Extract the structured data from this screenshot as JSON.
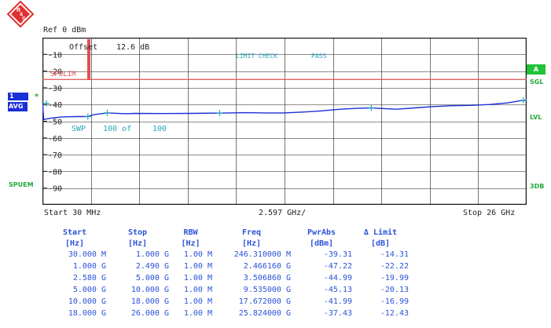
{
  "logo": {
    "letters": [
      "R",
      "&",
      "S"
    ],
    "colors": {
      "fill": "#e03030",
      "border": "#e03030",
      "text": "#ffffff"
    }
  },
  "ref_label": "Ref  0 dBm",
  "overlay": {
    "offset_label": "Offset",
    "offset_value": "12.6 dB",
    "limit_check": "LIMIT CHECK",
    "limit_result": "PASS",
    "limit_line_name": "SPULIM",
    "sweep_label": "SWP",
    "sweep_count": "100 of",
    "sweep_total": "100"
  },
  "side_labels": {
    "trace_num": "1",
    "trace_mode": "AVG",
    "trace_marker": "*",
    "spuem": "SPUEM",
    "badge_a": "A",
    "sgl": "SGL",
    "lvl": "LVL",
    "db3": "3DB"
  },
  "colors": {
    "grid": "#1a1a1a",
    "trace": "#1a2fd6",
    "limit_line": "#e05050",
    "cyan_text": "#2aa6bd",
    "green_text": "#25a83a",
    "table_text": "#2a52d9"
  },
  "footer": {
    "start": "Start  30 MHz",
    "center": "2.597 GHz/",
    "stop": "Stop  26 GHz"
  },
  "chart_data": {
    "type": "line",
    "y_unit": "dBm",
    "ylim": [
      -100,
      0
    ],
    "y_ticks": [
      "-10",
      "-20",
      "-30",
      "-40",
      "-50",
      "-60",
      "-70",
      "-80",
      "-90"
    ],
    "x_range_ghz": [
      0.03,
      26.0
    ],
    "grid": true,
    "limit_line_dbm": -25,
    "series": [
      {
        "x_ghz": [
          0.03,
          0.1,
          0.3,
          0.6,
          1.0,
          1.5,
          2.0,
          2.466,
          2.8,
          3.507,
          4.5,
          5.0,
          6.5,
          8.0,
          9.535,
          10.0,
          11.0,
          12.0,
          13.0,
          14.0,
          15.0,
          16.0,
          17.0,
          17.672,
          18.0,
          19.0,
          20.0,
          21.0,
          22.0,
          23.0,
          24.0,
          25.0,
          25.824,
          26.0
        ],
        "y_dbm": [
          -39.3,
          -49.0,
          -48.5,
          -48.0,
          -47.5,
          -47.3,
          -47.2,
          -47.2,
          -46.0,
          -45.0,
          -45.5,
          -45.3,
          -45.4,
          -45.3,
          -45.1,
          -45.0,
          -44.9,
          -45.0,
          -45.0,
          -44.5,
          -43.8,
          -42.8,
          -42.2,
          -42.0,
          -42.2,
          -42.8,
          -42.0,
          -41.2,
          -40.7,
          -40.5,
          -40.0,
          -39.0,
          -37.4,
          -37.8
        ]
      }
    ],
    "markers": [
      {
        "x_ghz": 0.246,
        "y_dbm": -39.31
      },
      {
        "x_ghz": 2.466,
        "y_dbm": -47.22
      },
      {
        "x_ghz": 3.507,
        "y_dbm": -44.99
      },
      {
        "x_ghz": 9.535,
        "y_dbm": -45.13
      },
      {
        "x_ghz": 17.672,
        "y_dbm": -41.99
      },
      {
        "x_ghz": 25.824,
        "y_dbm": -37.43
      }
    ]
  },
  "table": {
    "headers": [
      "Start",
      "Stop",
      "RBW",
      "Freq",
      "PwrAbs",
      "Δ Limit"
    ],
    "units": [
      "[Hz]",
      "[Hz]",
      "[Hz]",
      "[Hz]",
      "[dBm]",
      "[dB]"
    ],
    "rows": [
      [
        "30.000 M",
        "1.000 G",
        "1.00 M",
        "246.310000 M",
        "-39.31",
        "-14.31"
      ],
      [
        "1.000 G",
        "2.490 G",
        "1.00 M",
        "2.466160 G",
        "-47.22",
        "-22.22"
      ],
      [
        "2.580 G",
        "5.000 G",
        "1.00 M",
        "3.506860 G",
        "-44.99",
        "-19.99"
      ],
      [
        "5.000 G",
        "10.000 G",
        "1.00 M",
        "9.535000 G",
        "-45.13",
        "-20.13"
      ],
      [
        "10.000 G",
        "18.000 G",
        "1.00 M",
        "17.672000 G",
        "-41.99",
        "-16.99"
      ],
      [
        "18.000 G",
        "26.000 G",
        "1.00 M",
        "25.824000 G",
        "-37.43",
        "-12.43"
      ]
    ]
  }
}
